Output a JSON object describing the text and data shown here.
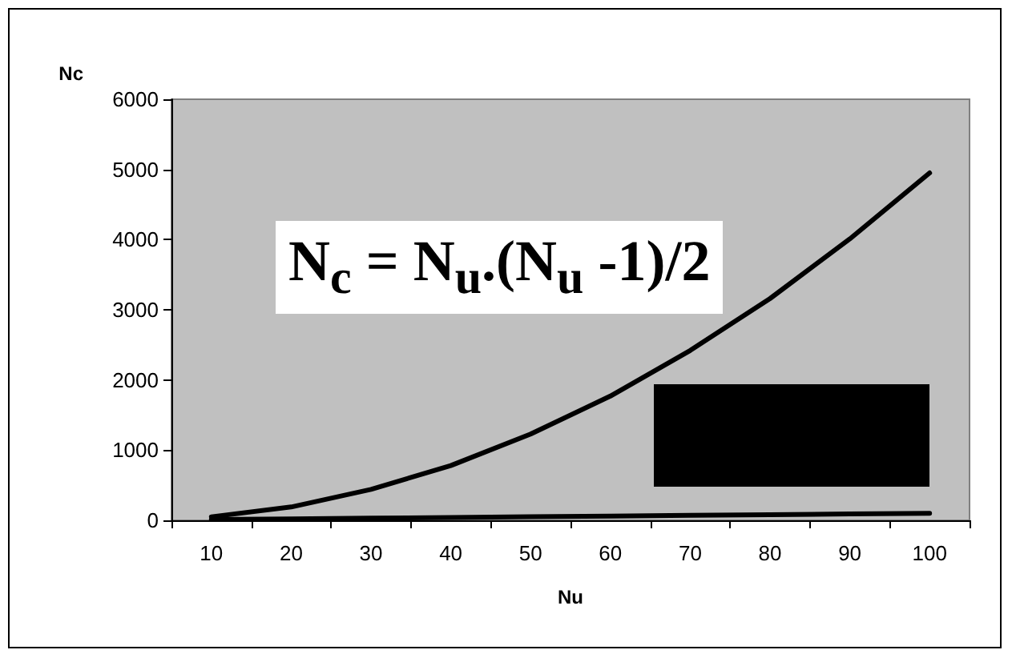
{
  "chart_data": {
    "type": "line",
    "xlabel": "Nu",
    "ylabel": "Nc",
    "categories": [
      "10",
      "20",
      "30",
      "40",
      "50",
      "60",
      "70",
      "80",
      "90",
      "100"
    ],
    "series": [
      {
        "color": "#000000",
        "values": [
          50,
          190,
          440,
          780,
          1230,
          1770,
          2420,
          3160,
          4010,
          4950
        ]
      },
      {
        "color": "#000000",
        "values": [
          10,
          20,
          30,
          40,
          50,
          60,
          70,
          80,
          90,
          100
        ]
      }
    ],
    "ylim": [
      0,
      6000
    ],
    "yticks": [
      0,
      1000,
      2000,
      3000,
      4000,
      5000,
      6000
    ],
    "grid": false,
    "marker": "none",
    "line_style": "solid",
    "annotations": [
      "N$_{c}$ = N$_{u}$.(N$_{u}$ -1)/2"
    ]
  }
}
